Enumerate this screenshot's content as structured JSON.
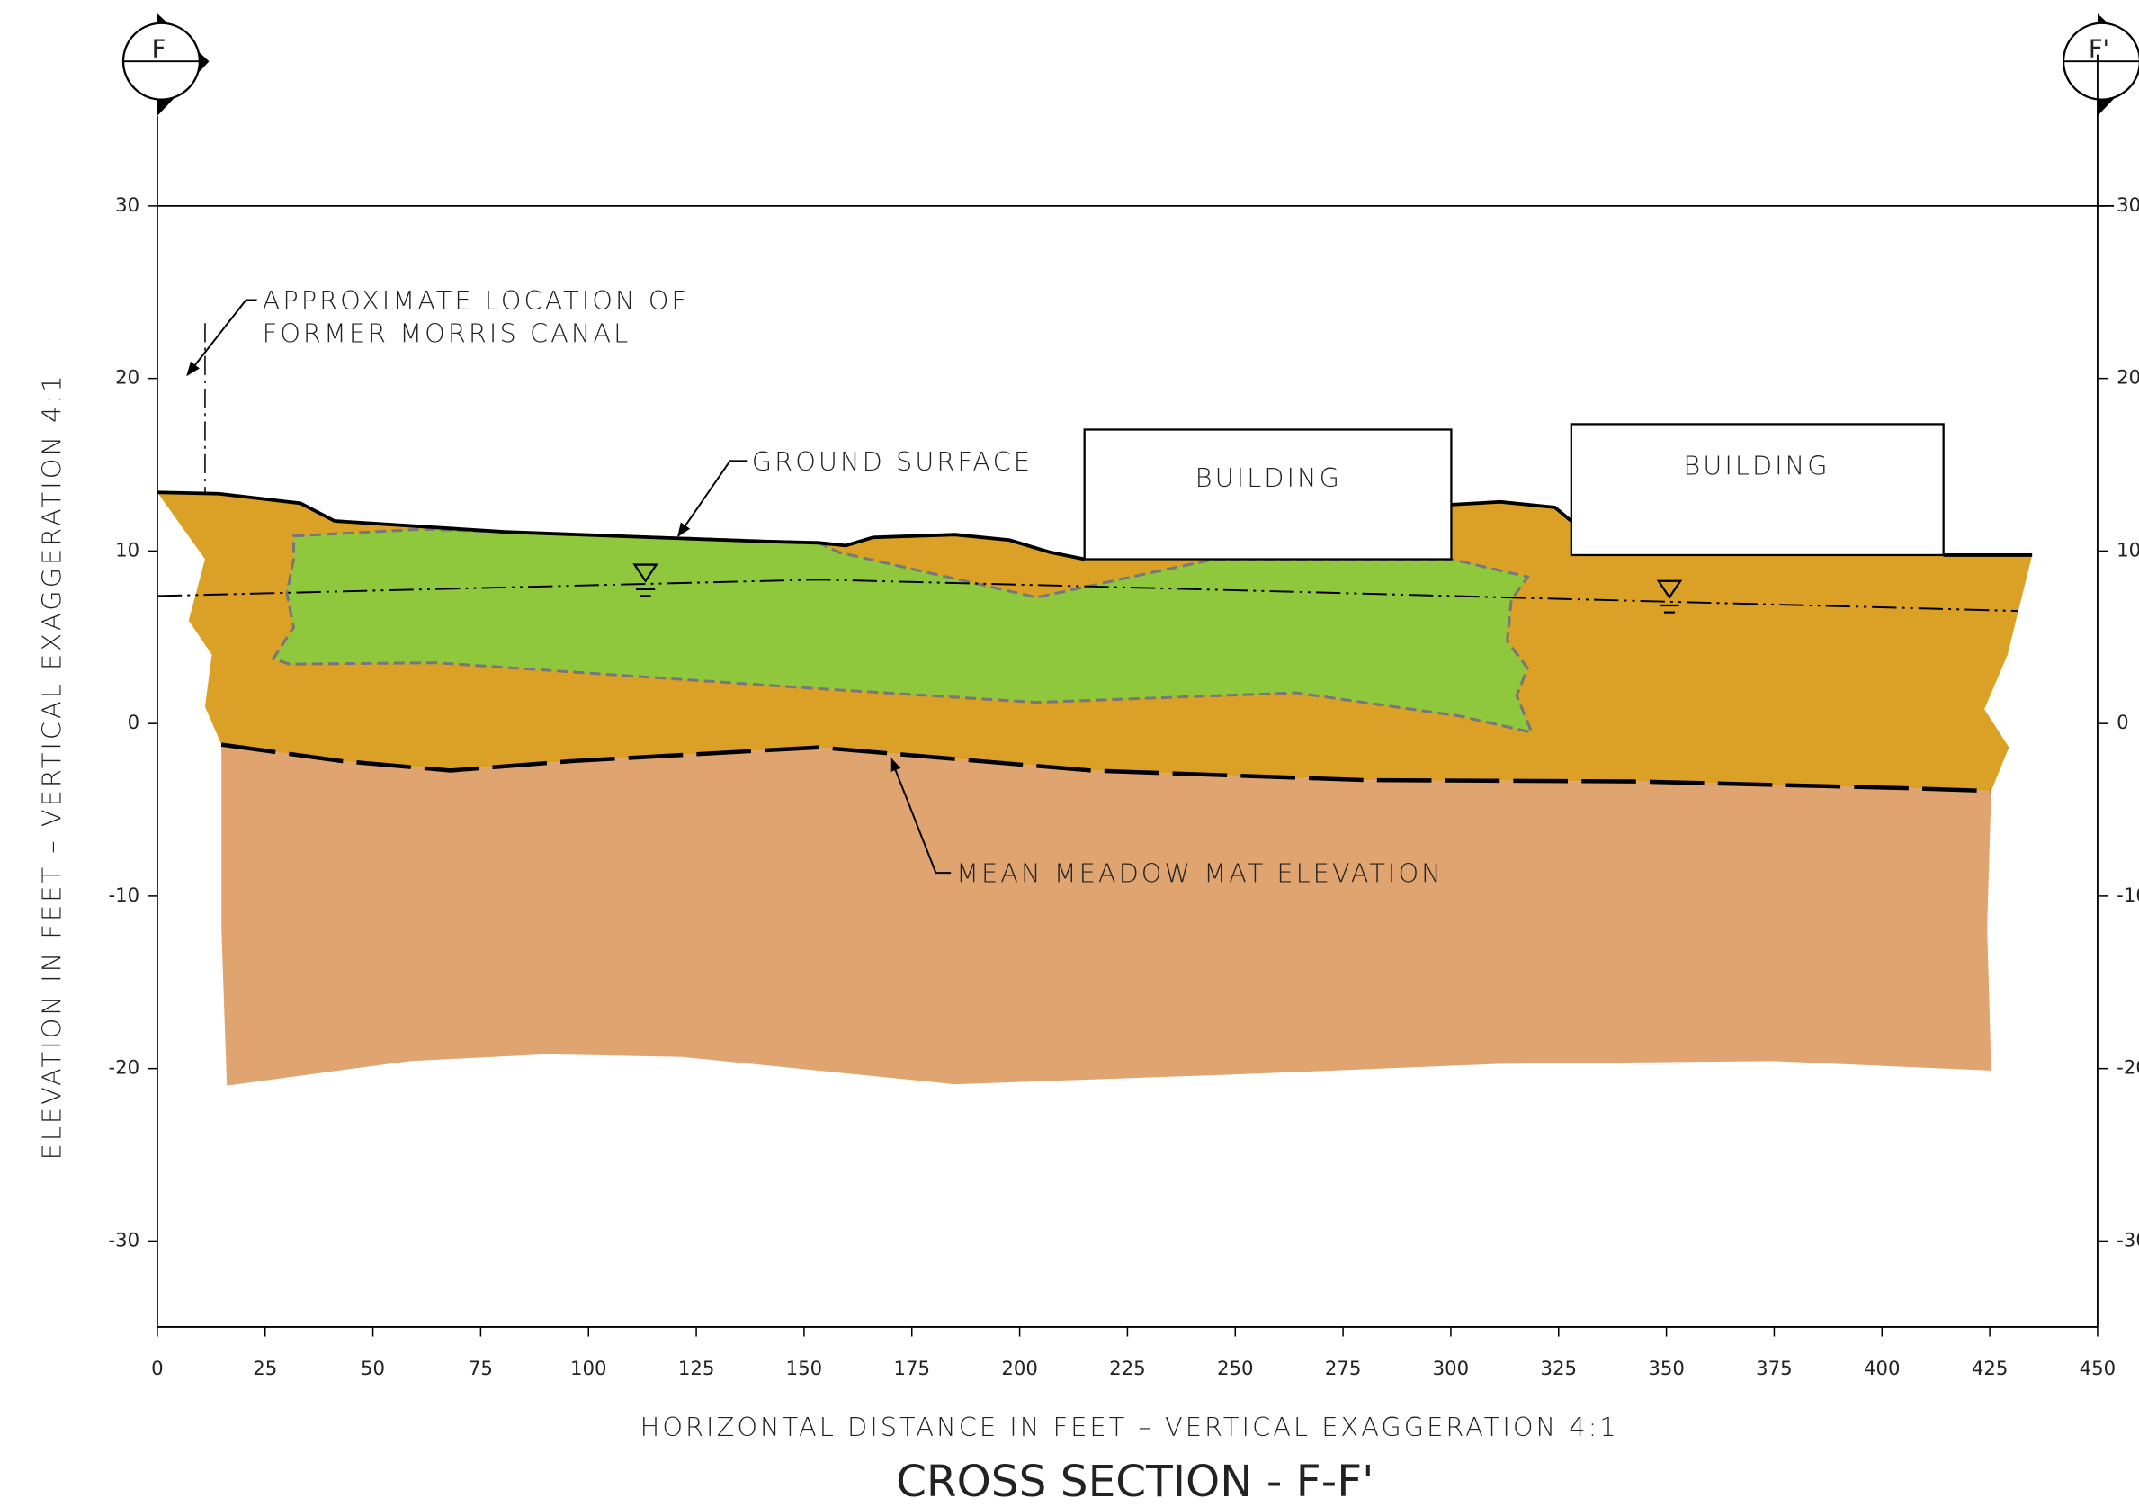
{
  "section_markers": {
    "start": "F",
    "end": "F'"
  },
  "annotations": {
    "canal_line1": "APPROXIMATE LOCATION OF",
    "canal_line2": "FORMER MORRIS CANAL",
    "ground_surface": "GROUND SURFACE",
    "meadow_mat": "MEAN MEADOW MAT ELEVATION"
  },
  "buildings": [
    "BUILDING",
    "BUILDING"
  ],
  "axes": {
    "y_label": "ELEVATION IN FEET – VERTICAL EXAGGERATION 4:1",
    "x_label": "HORIZONTAL DISTANCE IN FEET – VERTICAL EXAGGERATION 4:1",
    "xlim": [
      0,
      450
    ],
    "ylim": [
      -30,
      30
    ],
    "xticks": [
      0,
      25,
      50,
      75,
      100,
      125,
      150,
      175,
      200,
      225,
      250,
      275,
      300,
      325,
      350,
      375,
      400,
      425,
      450
    ],
    "yticks": [
      -30,
      -20,
      -10,
      0,
      10,
      20,
      30
    ]
  },
  "title": "CROSS SECTION - F-F'"
}
